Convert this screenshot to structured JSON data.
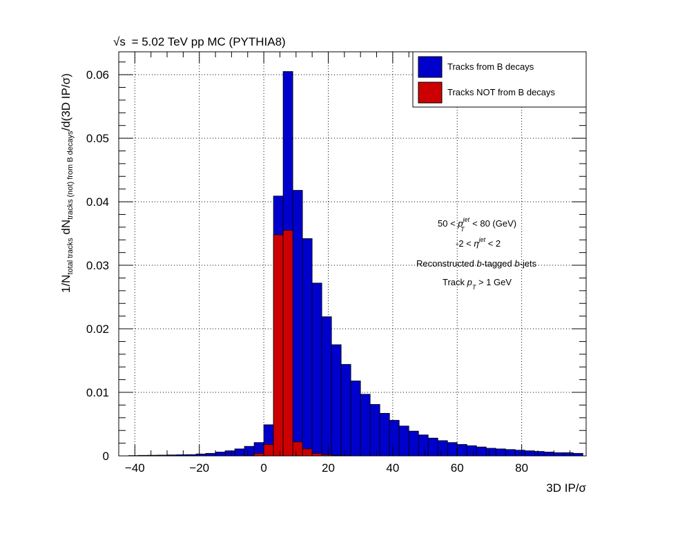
{
  "chart_data": {
    "type": "bar",
    "title_prefix": "√s",
    "title": "= 5.02 TeV pp MC (PYTHIA8)",
    "xlabel": "3D IP/σ",
    "ylabel_main": "1/N",
    "ylabel_sub1": "total tracks",
    "ylabel_mid": " dN",
    "ylabel_sub2": "tracks (not) from B decays",
    "ylabel_end": "/d(3D IP/σ)",
    "xlim": [
      -45,
      100
    ],
    "ylim": [
      0,
      0.0636
    ],
    "grid": true,
    "legend_position": "top-right",
    "bin_edges_start": -42,
    "bin_width": 3,
    "x_ticks": [
      "−40",
      "−20",
      "0",
      "20",
      "40",
      "60",
      "80"
    ],
    "x_tick_values": [
      -40,
      -20,
      0,
      20,
      40,
      60,
      80
    ],
    "y_ticks": [
      "0",
      "0.01",
      "0.02",
      "0.03",
      "0.04",
      "0.05",
      "0.06"
    ],
    "y_tick_values": [
      0,
      0.01,
      0.02,
      0.03,
      0.04,
      0.05,
      0.06
    ],
    "series": [
      {
        "name": "Tracks from B decays",
        "color": "#0000cc",
        "values": [
          5e-05,
          8e-05,
          0.0001,
          0.00012,
          0.00015,
          0.00018,
          0.0002,
          0.0003,
          0.0004,
          0.0006,
          0.0008,
          0.0011,
          0.0015,
          0.0021,
          0.0049,
          0.0409,
          0.0605,
          0.0418,
          0.0342,
          0.0272,
          0.0219,
          0.0175,
          0.0144,
          0.0118,
          0.0097,
          0.0081,
          0.0067,
          0.0056,
          0.0047,
          0.0039,
          0.0033,
          0.0028,
          0.0024,
          0.0021,
          0.0018,
          0.0016,
          0.0014,
          0.0012,
          0.0011,
          0.001,
          0.0009,
          0.0008,
          0.0007,
          0.0006,
          0.0005,
          0.0005,
          0.0004
        ]
      },
      {
        "name": "Tracks NOT from B decays",
        "color": "#cc0000",
        "values": [
          0,
          0,
          0,
          0,
          0,
          0,
          0,
          0,
          0,
          0,
          0,
          2e-05,
          5e-05,
          0.0004,
          0.0018,
          0.0348,
          0.0355,
          0.0022,
          0.0011,
          0.0004,
          0.0002,
          0.0001,
          5e-05,
          0,
          0,
          0,
          0,
          0,
          0,
          0,
          0,
          0,
          0,
          0,
          0,
          0,
          0,
          0,
          0,
          0,
          0,
          0,
          0,
          0,
          0,
          0,
          0
        ]
      }
    ],
    "annotations": {
      "line1_pre": "50 < ",
      "line1_p": "p",
      "line1_sup": "jet",
      "line1_sub": "T",
      "line1_post": " < 80 (GeV)",
      "line2_pre": "-2 < ",
      "line2_eta": "η",
      "line2_sup": "jet",
      "line2_post": " < 2",
      "line3_pre": "Reconstructed ",
      "line3_b1": "b",
      "line3_mid": "-tagged ",
      "line3_b2": "b",
      "line3_post": "-jets",
      "line4_pre": "Track ",
      "line4_p": "p",
      "line4_sub": "T",
      "line4_post": " > 1 GeV"
    }
  }
}
